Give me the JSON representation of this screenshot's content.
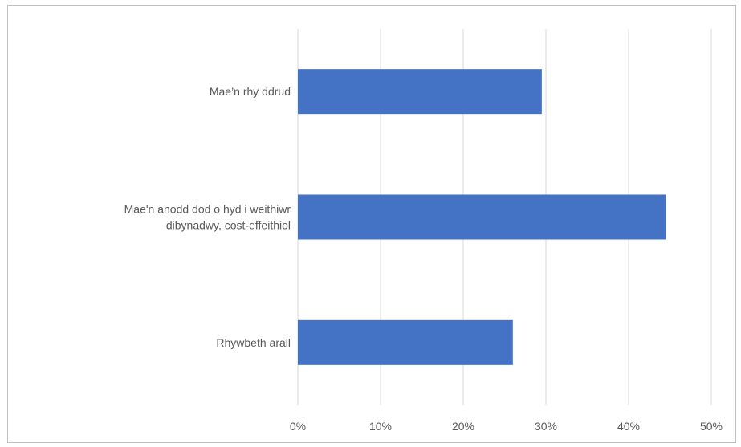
{
  "chart_data": {
    "type": "bar",
    "orientation": "horizontal",
    "categories": [
      [
        "Mae’n rhy ddrud"
      ],
      [
        "Mae'n anodd dod o hyd i weithiwr",
        "dibynadwy, cost-effeithiol"
      ],
      [
        "Rhywbeth arall"
      ]
    ],
    "values": [
      0.295,
      0.445,
      0.26
    ],
    "xlim": [
      0,
      0.5
    ],
    "ticks": [
      "0%",
      "10%",
      "20%",
      "30%",
      "40%",
      "50%"
    ],
    "tick_values": [
      0,
      0.1,
      0.2,
      0.3,
      0.4,
      0.5
    ],
    "grid": true,
    "legend": "none",
    "bar_color": "#4472c4",
    "grid_color": "#d9d9d9"
  }
}
